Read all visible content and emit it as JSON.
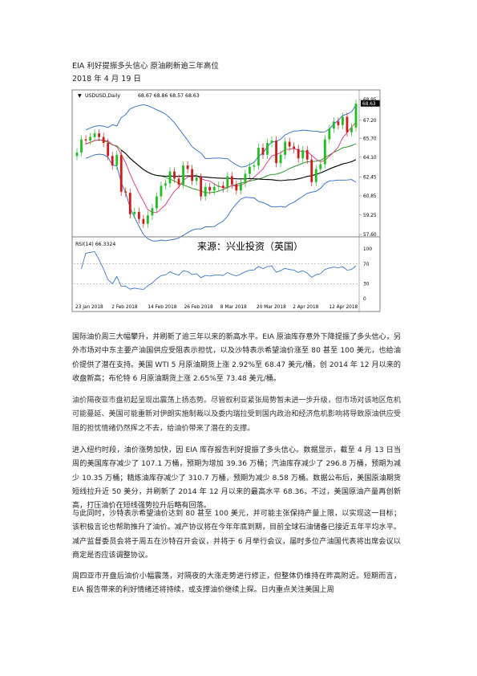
{
  "doc": {
    "title": "EIA 利好提振多头信心 原油刷新逾三年高位",
    "date": "2018 年 4 月 19 日"
  },
  "chart_data": {
    "type": "line",
    "symbol": "USDUSD,Daily",
    "ohlc_header": "68.67 68.86 68.57 68.63",
    "last_price": "68.63",
    "price_ticks": [
      "68.95",
      "67.20",
      "65.70",
      "64.10",
      "62.45",
      "60.85",
      "59.25",
      "57.60"
    ],
    "price_range": [
      57.6,
      68.95
    ],
    "x_labels": [
      "23 Jan 2018",
      "2 Feb 2018",
      "14 Feb 2018",
      "26 Feb 2018",
      "8 Mar 2018",
      "20 Mar 2018",
      "2 Apr 2018",
      "12 Apr 2018"
    ],
    "close": [
      64.5,
      65.6,
      65.5,
      65.8,
      66.1,
      65.8,
      65.3,
      64.2,
      63.4,
      64.3,
      61.2,
      61.1,
      59.3,
      59.5,
      58.9,
      58.5,
      59.2,
      59.8,
      60.8,
      61.7,
      61.9,
      62.9,
      62.3,
      61.8,
      63.4,
      63.1,
      62.1,
      62.4,
      60.8,
      61.6,
      61.3,
      61.6,
      61.7,
      61.5,
      62.5,
      61.8,
      61.3,
      61.9,
      62.7,
      63.3,
      63.4,
      64.9,
      64.3,
      65.3,
      65.5,
      63.6,
      64.3,
      65.4,
      65.0,
      64.8,
      64.0,
      64.7,
      63.9,
      62.0,
      63.1,
      63.5,
      65.6,
      66.5,
      67.1,
      66.8,
      67.5,
      66.2,
      66.6,
      68.6
    ],
    "rsi_label": "RSI(14) 66.3324",
    "rsi_value": 66.3324,
    "rsi_ticks": [
      "100",
      "70",
      "30",
      "0"
    ],
    "watermark": "来源：兴业投资（英国）"
  },
  "paragraphs": [
    "国际油价周三大幅攀升，并刷新了逾三年以来的新高水平。EIA 原油库存意外下降提振了多头信心，另外市场对中东主要产油国供应受阻表示担忧，以及沙特表示希望油价涨至 80 甚至 100 美元，也给油价提供了潜在支持。美国 WTI 5 月原油期货上涨 2.92%至 68.47 美元/桶，创 2014 年 12 月以来的收盘新高；布伦特 6 月原油期货上涨 2.65%至 73.48 美元/桶。",
    "油价隔夜亚市盘初起呈现出震荡上扬态势。尽管叙利亚紧张局势暂未进一步升级，但市场对该地区危机可能蔓延、美国可能重新对伊朗实施制裁以及委内瑞拉受到国内政治和经济危机影响将导致原油供应受阻的担忧情绪仍然挥之不去，给油价带来了潜在的支撑。",
    "进入纽约时段，油价涨势加快，因 EIA 库存报告利好提振了多头信心。数据显示，截至 4 月 13 日当周的美国库存减少了 107.1 万桶，预期为增加 39.36 万桶；汽油库存减少了 296.8 万桶，预期为减少 10.35 万桶；精炼油库存减少了 310.7 万桶，预期为减少 8.58 万桶。数据公布后，美国原油期货短线拉升近 50 美分，并刷新了 2014 年 12 月以来的最高水平 68.36。不过，美国原油产量再创新高，打压油价在短线强势拉升后略有回落。",
    "与此同时，沙特表示希望油价达到 80 甚至 100 美元，并可能主张保持产量上限，以实现这一目标；该积极言论也帮助推升了油价。减产协议将在今年年底到期，目前全球石油储备已接近五年平均水平。减产监督委员会将于周五在沙特召开会议，并将于 6 月举行会议，届时多位产油国代表将出席会议以商定是否应该调整协议。",
    "周四亚市开盘后油价小幅震荡，对隔夜的大涨走势进行修正，但整体仍维持在昨高附近。短期而言，EIA 报告带来的利好情绪还将持续，或支撑油价继续上探。日内重点关注美国上周"
  ]
}
